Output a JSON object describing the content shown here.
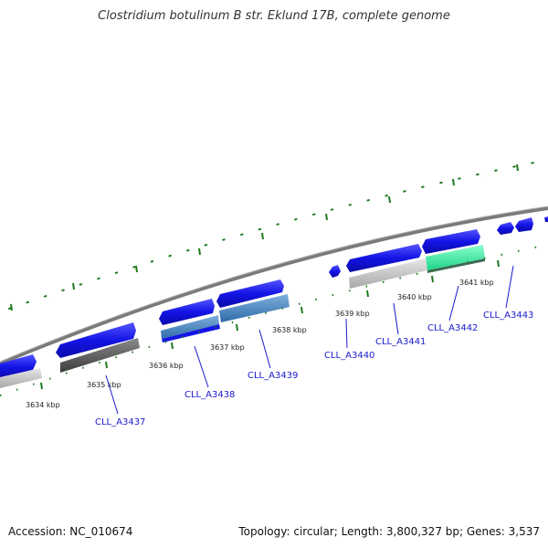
{
  "title": "Clostridium botulinum B str. Eklund 17B, complete genome",
  "footer": {
    "accession": "Accession: NC_010674",
    "summary": "Topology: circular; Length: 3,800,327 bp; Genes: 3,537"
  },
  "colors": {
    "forward_gene": "#1414e6",
    "reverse_gene": "#1414e6",
    "backbone": "#808080",
    "tick": "#1e7a1e",
    "label": "#1a1acc",
    "feature_gray": "#c8c8c8",
    "feature_dark": "#5a5a5a",
    "feature_steel": "#4a86c0",
    "feature_teal": "#33ee99"
  },
  "scale_labels": [
    "3634 kbp",
    "3635 kbp",
    "3636 kbp",
    "3637 kbp",
    "3638 kbp",
    "3639 kbp",
    "3640 kbp",
    "3641 kbp"
  ],
  "gene_labels": [
    "CLL_A3437",
    "CLL_A3438",
    "CLL_A3439",
    "CLL_A3440",
    "CLL_A3441",
    "CLL_A3442",
    "CLL_A3443"
  ]
}
